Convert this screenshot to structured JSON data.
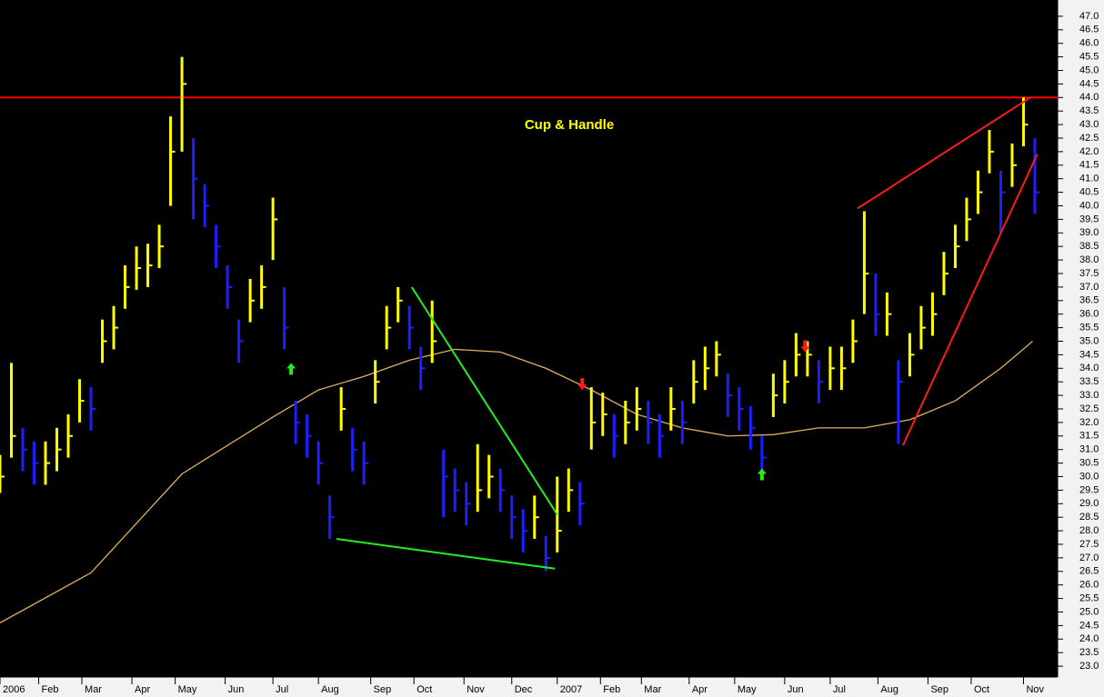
{
  "chart_data": {
    "type": "ohlc",
    "annotation": "Cup & Handle",
    "up_color": "#ffff00",
    "down_color": "#1e1eff",
    "xlim": [
      0,
      465
    ],
    "ylim": [
      22.6,
      47.6
    ],
    "xticks": [
      {
        "value": 0,
        "label": "2006"
      },
      {
        "value": 17,
        "label": "Feb"
      },
      {
        "value": 36,
        "label": "Mar"
      },
      {
        "value": 58,
        "label": "Apr"
      },
      {
        "value": 77,
        "label": "May"
      },
      {
        "value": 99,
        "label": "Jun"
      },
      {
        "value": 120,
        "label": "Jul"
      },
      {
        "value": 140,
        "label": "Aug"
      },
      {
        "value": 163,
        "label": "Sep"
      },
      {
        "value": 182,
        "label": "Oct"
      },
      {
        "value": 204,
        "label": "Nov"
      },
      {
        "value": 225,
        "label": "Dec"
      },
      {
        "value": 245,
        "label": "2007"
      },
      {
        "value": 264,
        "label": "Feb"
      },
      {
        "value": 282,
        "label": "Mar"
      },
      {
        "value": 303,
        "label": "Apr"
      },
      {
        "value": 323,
        "label": "May"
      },
      {
        "value": 345,
        "label": "Jun"
      },
      {
        "value": 365,
        "label": "Jul"
      },
      {
        "value": 386,
        "label": "Aug"
      },
      {
        "value": 408,
        "label": "Sep"
      },
      {
        "value": 427,
        "label": "Oct"
      },
      {
        "value": 450,
        "label": "Nov"
      }
    ],
    "yticks": [
      {
        "value": 23,
        "label": "23.0"
      },
      23.5,
      {
        "value": 24,
        "label": "24.0"
      },
      24.5,
      {
        "value": 25,
        "label": "25.0"
      },
      25.5,
      {
        "value": 26,
        "label": "26.0"
      },
      26.5,
      {
        "value": 27,
        "label": "27.0"
      },
      27.5,
      {
        "value": 28,
        "label": "28.0"
      },
      28.5,
      {
        "value": 29,
        "label": "29.0"
      },
      29.5,
      {
        "value": 30,
        "label": "30.0"
      },
      30.5,
      {
        "value": 31,
        "label": "31.0"
      },
      31.5,
      {
        "value": 32,
        "label": "32.0"
      },
      32.5,
      {
        "value": 33,
        "label": "33.0"
      },
      33.5,
      {
        "value": 34,
        "label": "34.0"
      },
      34.5,
      {
        "value": 35,
        "label": "35.0"
      },
      35.5,
      {
        "value": 36,
        "label": "36.0"
      },
      36.5,
      {
        "value": 37,
        "label": "37.0"
      },
      37.5,
      {
        "value": 38,
        "label": "38.0"
      },
      38.5,
      {
        "value": 39,
        "label": "39.0"
      },
      39.5,
      {
        "value": 40,
        "label": "40.0"
      },
      40.5,
      {
        "value": 41,
        "label": "41.0"
      },
      41.5,
      {
        "value": 42,
        "label": "42.0"
      },
      42.5,
      {
        "value": 43,
        "label": "43.0"
      },
      43.5,
      {
        "value": 44,
        "label": "44.0"
      },
      44.5,
      {
        "value": 45,
        "label": "45.0"
      },
      45.5,
      {
        "value": 46,
        "label": "46.0"
      },
      46.5,
      {
        "value": 47,
        "label": "47.0"
      }
    ],
    "x": [
      0,
      5,
      10,
      15,
      20,
      25,
      30,
      35,
      40,
      45,
      50,
      55,
      60,
      65,
      70,
      75,
      80,
      85,
      90,
      95,
      100,
      105,
      110,
      115,
      120,
      125,
      130,
      135,
      140,
      145,
      150,
      155,
      160,
      165,
      170,
      175,
      180,
      185,
      190,
      195,
      200,
      205,
      210,
      215,
      220,
      225,
      230,
      235,
      240,
      245,
      250,
      255,
      260,
      265,
      270,
      275,
      280,
      285,
      290,
      295,
      300,
      305,
      310,
      315,
      320,
      325,
      330,
      335,
      340,
      345,
      350,
      355,
      360,
      365,
      370,
      375,
      380,
      385,
      390,
      395,
      400,
      405,
      410,
      415,
      420,
      425,
      430,
      435,
      440,
      445,
      450,
      455
    ],
    "high": [
      30.8,
      34.2,
      31.8,
      31.3,
      31.3,
      31.8,
      32.3,
      33.6,
      33.3,
      35.8,
      36.3,
      37.8,
      38.5,
      38.6,
      39.3,
      43.3,
      45.5,
      42.5,
      40.8,
      39.3,
      37.8,
      35.8,
      37.3,
      37.8,
      40.3,
      37.0,
      32.8,
      32.3,
      31.3,
      29.3,
      33.3,
      31.8,
      31.3,
      34.3,
      36.3,
      37.0,
      36.3,
      34.8,
      36.5,
      31.0,
      30.3,
      29.8,
      31.2,
      30.8,
      30.3,
      29.3,
      28.8,
      29.3,
      27.8,
      30.0,
      30.3,
      29.8,
      33.3,
      33.1,
      32.3,
      32.8,
      33.3,
      32.8,
      32.3,
      33.3,
      32.8,
      34.3,
      34.8,
      35.0,
      33.8,
      33.3,
      32.6,
      31.5,
      33.8,
      34.3,
      35.3,
      35.0,
      34.3,
      34.8,
      34.8,
      35.8,
      39.8,
      37.5,
      36.8,
      34.3,
      35.3,
      36.3,
      36.8,
      38.3,
      39.3,
      40.3,
      41.3,
      42.8,
      41.3,
      42.3,
      44.0,
      42.5
    ],
    "low": [
      29.4,
      30.7,
      30.2,
      29.7,
      29.7,
      30.2,
      30.7,
      32.0,
      31.7,
      34.2,
      34.7,
      36.2,
      36.9,
      37.0,
      37.7,
      40.0,
      42.0,
      39.5,
      39.2,
      37.7,
      36.2,
      34.2,
      35.7,
      36.2,
      38.0,
      34.7,
      31.2,
      30.7,
      29.7,
      27.7,
      31.7,
      30.2,
      29.7,
      32.7,
      34.7,
      35.7,
      34.7,
      33.2,
      34.2,
      28.5,
      28.7,
      28.2,
      28.7,
      29.2,
      28.7,
      27.7,
      27.2,
      27.7,
      26.5,
      27.2,
      28.7,
      28.2,
      31.0,
      31.5,
      30.7,
      31.2,
      31.7,
      31.2,
      30.7,
      31.7,
      31.2,
      32.7,
      33.2,
      33.7,
      32.2,
      31.7,
      31.0,
      30.2,
      32.2,
      32.7,
      33.7,
      33.7,
      32.7,
      33.2,
      33.2,
      34.2,
      36.0,
      35.2,
      35.2,
      31.2,
      33.7,
      34.7,
      35.2,
      36.7,
      37.7,
      38.7,
      39.7,
      41.2,
      39.0,
      40.7,
      42.2,
      39.7
    ],
    "close": [
      30.0,
      31.5,
      31.0,
      30.5,
      30.5,
      31.0,
      31.5,
      32.8,
      32.5,
      35.0,
      35.5,
      37.0,
      37.7,
      37.8,
      38.5,
      42.0,
      44.5,
      41.0,
      40.0,
      38.5,
      37.0,
      35.0,
      36.5,
      37.0,
      39.5,
      35.5,
      32.0,
      31.5,
      30.5,
      28.5,
      32.5,
      31.0,
      30.5,
      33.5,
      35.5,
      36.5,
      35.5,
      34.0,
      35.0,
      30.0,
      29.5,
      29.0,
      29.5,
      30.0,
      29.5,
      28.5,
      28.0,
      28.5,
      27.0,
      28.0,
      29.5,
      29.0,
      32.0,
      32.3,
      31.5,
      32.0,
      32.5,
      32.0,
      31.5,
      32.5,
      32.0,
      33.5,
      34.0,
      34.5,
      33.0,
      32.5,
      31.8,
      30.7,
      33.0,
      33.5,
      34.5,
      34.5,
      33.5,
      34.0,
      34.0,
      35.0,
      37.5,
      36.0,
      36.0,
      33.5,
      34.5,
      35.5,
      36.0,
      37.5,
      38.5,
      39.5,
      40.5,
      42.0,
      40.5,
      41.5,
      43.0,
      40.5
    ],
    "moving_average": {
      "color": "#e0b060",
      "x": [
        0,
        40,
        80,
        120,
        140,
        160,
        180,
        200,
        220,
        240,
        260,
        280,
        300,
        320,
        340,
        360,
        380,
        400,
        420,
        440,
        454
      ],
      "values": [
        24.6,
        26.45,
        30.1,
        32.2,
        33.2,
        33.7,
        34.3,
        34.7,
        34.6,
        34.0,
        33.2,
        32.3,
        31.8,
        31.5,
        31.55,
        31.8,
        31.8,
        32.1,
        32.8,
        34.0,
        35.0
      ]
    },
    "hline": {
      "value": 44.0,
      "color": "#ff0000"
    },
    "trendlines": [
      {
        "color": "#22ee22",
        "x": [
          181,
          245
        ],
        "y": [
          37.0,
          28.6
        ]
      },
      {
        "color": "#22ee22",
        "x": [
          148,
          244
        ],
        "y": [
          27.7,
          26.6
        ]
      },
      {
        "color": "#ff1a1a",
        "x": [
          377,
          453
        ],
        "y": [
          39.9,
          44.0
        ]
      },
      {
        "color": "#ff1a1a",
        "x": [
          397,
          456
        ],
        "y": [
          31.15,
          41.9
        ]
      }
    ],
    "arrows": [
      {
        "direction": "up",
        "color": "#22ee22",
        "x": 128,
        "y": 34.2
      },
      {
        "direction": "down",
        "color": "#ff1a1a",
        "x": 256,
        "y": 33.2
      },
      {
        "direction": "up",
        "color": "#22ee22",
        "x": 335,
        "y": 30.3
      },
      {
        "direction": "down",
        "color": "#ff1a1a",
        "x": 354,
        "y": 34.6
      }
    ]
  }
}
